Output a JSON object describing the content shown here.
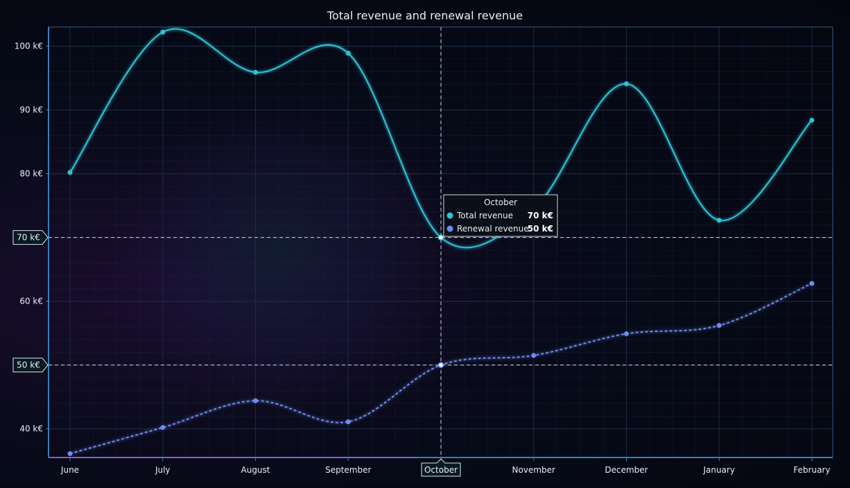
{
  "chart_data": {
    "type": "line",
    "title": "Total revenue and renewal revenue",
    "categories": [
      "June",
      "July",
      "August",
      "September",
      "October",
      "November",
      "December",
      "January",
      "February"
    ],
    "ylim": [
      35.5,
      103
    ],
    "ytick_values": [
      40,
      60,
      70,
      80,
      90,
      100
    ],
    "ytick_labels": [
      "40 k€",
      "60 k€",
      "70 k€",
      "80 k€",
      "90 k€",
      "100 k€"
    ],
    "series": [
      {
        "name": "Total revenue",
        "values": [
          80.2,
          102.2,
          95.9,
          98.9,
          70,
          74.5,
          94.1,
          72.7,
          88.4
        ]
      },
      {
        "name": "Renewal revenue",
        "values": [
          36.1,
          40.2,
          44.4,
          41.1,
          50,
          51.5,
          54.9,
          56.2,
          62.8
        ]
      }
    ],
    "grid": true,
    "hover": {
      "category": "October",
      "rows": [
        {
          "label": "Total revenue",
          "value": "70 k€"
        },
        {
          "label": "Renewal revenue",
          "value": "50 k€"
        }
      ],
      "marker_values": [
        70,
        50
      ],
      "marker_labels": [
        "70 k€",
        "50 k€"
      ]
    },
    "colors": {
      "total": "#2ec4d6",
      "renewal": "#6b8ef0",
      "grid": "#1c2d45",
      "axis": "#3a7fb8",
      "axis_accent": "#b44ad6"
    }
  }
}
